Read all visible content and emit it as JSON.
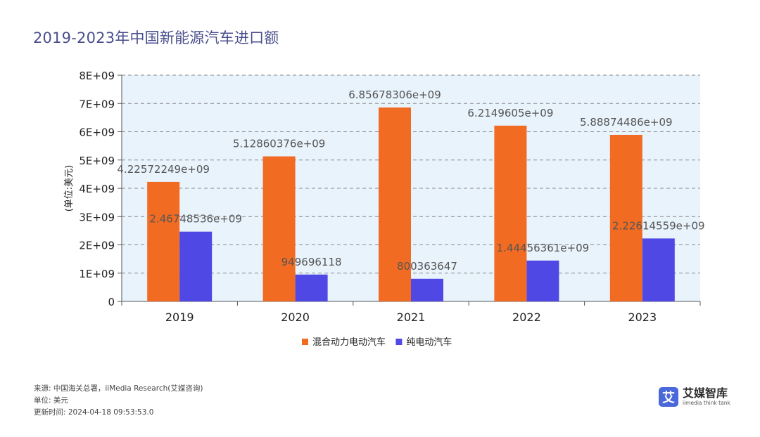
{
  "page": {
    "title": "2019-2023年中国新能源汽车进口额"
  },
  "chart_data": {
    "type": "bar",
    "title": "2019-2023年中国新能源汽车进口额",
    "ylabel": "(单位:美元)",
    "xlabel": "",
    "categories": [
      "2019",
      "2020",
      "2021",
      "2022",
      "2023"
    ],
    "series": [
      {
        "name": "混合动力电动汽车",
        "color": "#f26b22",
        "values": [
          4225722490,
          5128603760,
          6856783060,
          6214960500,
          5888744860
        ],
        "labels": [
          "4.22572249e+09",
          "5.12860376e+09",
          "6.85678306e+09",
          "6.2149605e+09",
          "5.88874486e+09"
        ]
      },
      {
        "name": "纯电动汽车",
        "color": "#5048e5",
        "values": [
          2467485360,
          949696118,
          800363647,
          1444563610,
          2226145590
        ],
        "labels": [
          "2.46748536e+09",
          "949696118",
          "800363647",
          "1.44456361e+09",
          "2.22614559e+09"
        ]
      }
    ],
    "ylim": [
      0,
      8000000000
    ],
    "yticks": [
      0,
      1000000000,
      2000000000,
      3000000000,
      4000000000,
      5000000000,
      6000000000,
      7000000000,
      8000000000
    ],
    "ytick_labels": [
      "0",
      "1E+09",
      "2E+09",
      "3E+09",
      "4E+09",
      "5E+09",
      "6E+09",
      "7E+09",
      "8E+09"
    ],
    "grid": true,
    "plot_background": "#e8f3fc",
    "legend_position": "bottom-center"
  },
  "footer": {
    "source": "来源: 中国海关总署，iiMedia Research(艾媒咨询)",
    "unit": "单位: 美元",
    "updated": "更新时间: 2024-04-18 09:53:53.0"
  },
  "brand": {
    "logo_char": "艾",
    "name": "艾媒智库",
    "sub": "iimedia think tank"
  }
}
